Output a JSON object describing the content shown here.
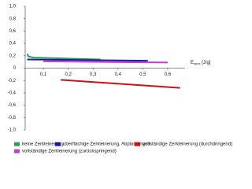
{
  "chart_data": {
    "type": "line",
    "x_label": "E",
    "x_label_sub": "spez",
    "x_label_unit": " [J/g]",
    "xlim": [
      0.027,
      0.67
    ],
    "xticks": [
      {
        "value": 0.1,
        "label": "0,1"
      },
      {
        "value": 0.2,
        "label": "0,2"
      },
      {
        "value": 0.3,
        "label": "0,3"
      },
      {
        "value": 0.4,
        "label": "0,4"
      },
      {
        "value": 0.5,
        "label": "0,5"
      },
      {
        "value": 0.6,
        "label": "0,6"
      }
    ],
    "ylim": [
      -1.0,
      1.0
    ],
    "yticks": [
      {
        "value": 1.0,
        "label": "1,0"
      },
      {
        "value": 0.8,
        "label": "0,8"
      },
      {
        "value": 0.6,
        "label": "0,6"
      },
      {
        "value": 0.4,
        "label": "0,4"
      },
      {
        "value": 0.2,
        "label": "0,2"
      },
      0,
      {
        "value": -0.2,
        "label": "-0,2"
      },
      {
        "value": -0.4,
        "label": "-0,4"
      },
      {
        "value": -0.6,
        "label": "-0,6"
      },
      {
        "value": -0.8,
        "label": "-0,8"
      },
      {
        "value": -1.0,
        "label": "-1,0"
      }
    ],
    "series": [
      {
        "name": "keine Zerkleinerung",
        "color": "#2ca05a",
        "x": [
          0.035,
          0.04,
          0.06,
          0.33
        ],
        "values": [
          0.23,
          0.19,
          0.17,
          0.14
        ]
      },
      {
        "name": "oberflächige Zerkleinerung, Abplatzungen",
        "color": "#1a1aa0",
        "x": [
          0.035,
          0.52
        ],
        "values": [
          0.14,
          0.12
        ]
      },
      {
        "name": "vollständige Zerkleinerung (durchdringend)",
        "color": "#d01010",
        "x": [
          0.17,
          0.65
        ],
        "values": [
          -0.19,
          -0.32
        ]
      },
      {
        "name": "vollständige Zerkleinerung (zurückspringend)",
        "color": "#c040d0",
        "x": [
          0.1,
          0.6
        ],
        "values": [
          0.11,
          0.09
        ]
      }
    ]
  }
}
